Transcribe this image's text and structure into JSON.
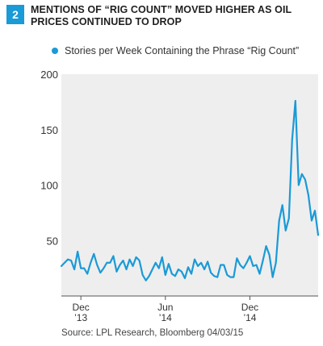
{
  "figure_number": "2",
  "title": "MENTIONS OF “RIG COUNT” MOVED HIGHER AS OIL PRICES CONTINUED TO DROP",
  "source": "Source: LPL Research, Bloomberg   04/03/15",
  "colors": {
    "series": "#1a9ad6",
    "badge": "#1a9ad6",
    "plot_bg": "#eeeeef"
  },
  "chart_data": {
    "type": "line",
    "legend": "top-left",
    "grid": false,
    "ylim": [
      0,
      200
    ],
    "yticks": [
      50,
      100,
      150,
      200
    ],
    "xticks": [
      {
        "index": 6,
        "label": [
          "Dec",
          "’13"
        ]
      },
      {
        "index": 32,
        "label": [
          "Jun",
          "’14"
        ]
      },
      {
        "index": 58,
        "label": [
          "Dec",
          "’14"
        ]
      }
    ],
    "series": [
      {
        "name": "Stories per Week Containing the Phrase “Rig Count”",
        "values": [
          27,
          30,
          33,
          32,
          24,
          40,
          25,
          25,
          20,
          30,
          38,
          28,
          21,
          25,
          30,
          30,
          36,
          22,
          28,
          32,
          24,
          33,
          27,
          35,
          32,
          19,
          14,
          18,
          24,
          30,
          25,
          35,
          19,
          29,
          20,
          18,
          24,
          22,
          16,
          26,
          20,
          33,
          27,
          30,
          24,
          31,
          21,
          18,
          17,
          28,
          28,
          19,
          17,
          17,
          34,
          28,
          25,
          30,
          36,
          27,
          28,
          20,
          32,
          45,
          37,
          17,
          30,
          68,
          82,
          59,
          70,
          141,
          176,
          100,
          110,
          105,
          91,
          68,
          77,
          55
        ]
      }
    ]
  }
}
